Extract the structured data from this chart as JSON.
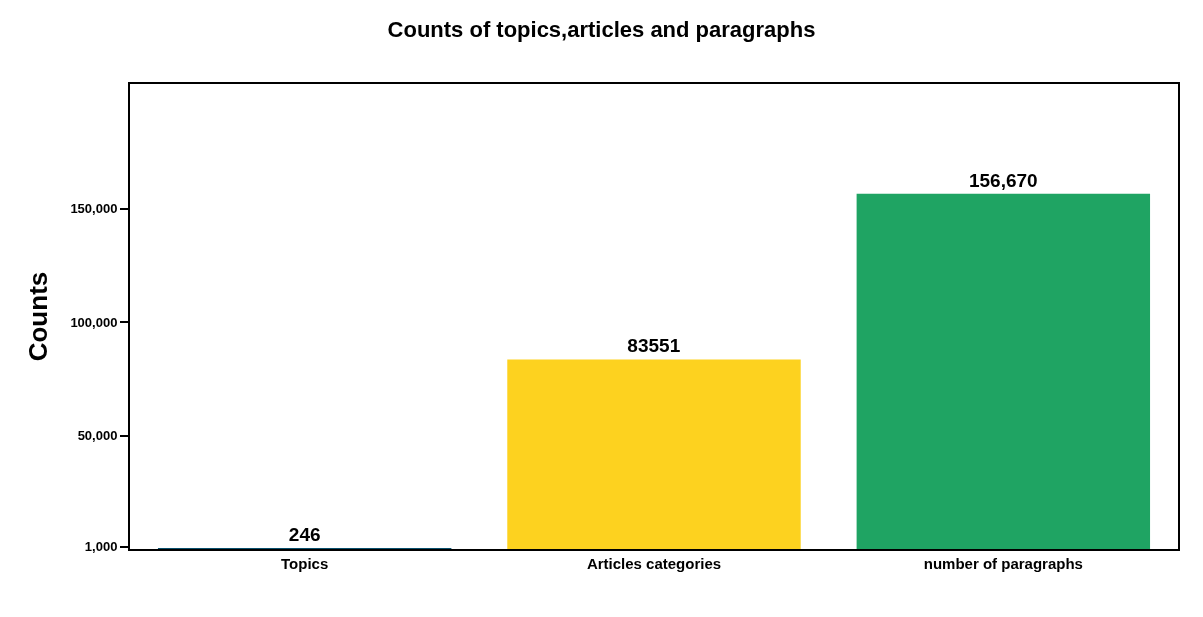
{
  "chart_data": {
    "type": "bar",
    "title": "Counts of topics,articles and paragraphs",
    "ylabel": "Counts",
    "categories": [
      "Topics",
      "Articles categories",
      "number of paragraphs"
    ],
    "values": [
      246,
      83551,
      156670
    ],
    "colors": [
      "#084f6c",
      "#fdd21f",
      "#1fa463"
    ],
    "value_labels": [
      "246",
      "83551",
      "156,670"
    ],
    "ylim": [
      0,
      205000
    ],
    "yticks": [
      {
        "value": 1000,
        "label": "1,000"
      },
      {
        "value": 50000,
        "label": "50,000"
      },
      {
        "value": 100000,
        "label": "100,000"
      },
      {
        "value": 150000,
        "label": "150,000"
      }
    ],
    "legend": false
  }
}
